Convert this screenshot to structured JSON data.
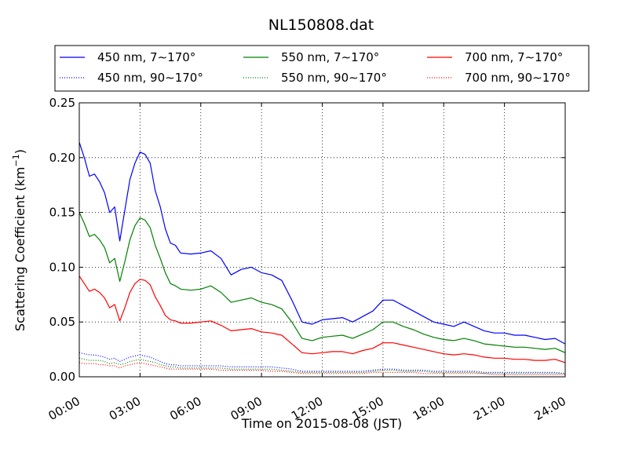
{
  "chart_data": {
    "type": "line",
    "title": "NL150808.dat",
    "xlabel": "Time on 2015-08-08 (JST)",
    "ylabel": "Scattering Coefficient (km",
    "ylabel_unit_exponent": "−1",
    "ylabel_suffix": ")",
    "x_unit": "hours",
    "xlim": [
      0,
      24
    ],
    "ylim": [
      0,
      0.25
    ],
    "grid": true,
    "grid_style": "dotted",
    "legend_position": "top",
    "legend_columns": 3,
    "x_ticks": [
      {
        "value": 0,
        "label": "00:00"
      },
      {
        "value": 3,
        "label": "03:00"
      },
      {
        "value": 6,
        "label": "06:00"
      },
      {
        "value": 9,
        "label": "09:00"
      },
      {
        "value": 12,
        "label": "12:00"
      },
      {
        "value": 15,
        "label": "15:00"
      },
      {
        "value": 18,
        "label": "18:00"
      },
      {
        "value": 21,
        "label": "21:00"
      },
      {
        "value": 24,
        "label": "24:00"
      }
    ],
    "y_ticks": [
      {
        "value": 0.0,
        "label": "0.00"
      },
      {
        "value": 0.05,
        "label": "0.05"
      },
      {
        "value": 0.1,
        "label": "0.10"
      },
      {
        "value": 0.15,
        "label": "0.15"
      },
      {
        "value": 0.2,
        "label": "0.20"
      },
      {
        "value": 0.25,
        "label": "0.25"
      }
    ],
    "x": [
      0,
      0.25,
      0.5,
      0.75,
      1,
      1.25,
      1.5,
      1.75,
      2,
      2.25,
      2.5,
      2.75,
      3,
      3.25,
      3.5,
      3.75,
      4,
      4.25,
      4.5,
      4.75,
      5,
      5.5,
      6,
      6.5,
      7,
      7.5,
      8,
      8.5,
      9,
      9.5,
      10,
      10.5,
      11,
      11.5,
      12,
      12.5,
      13,
      13.5,
      14,
      14.5,
      15,
      15.5,
      16,
      16.5,
      17,
      17.5,
      18,
      18.5,
      19,
      19.5,
      20,
      20.5,
      21,
      21.5,
      22,
      22.5,
      23,
      23.5,
      24
    ],
    "series": [
      {
        "name": "450 nm, 7∼170°",
        "color": "#0000ff",
        "style": "solid",
        "values": [
          0.214,
          0.2,
          0.183,
          0.185,
          0.178,
          0.168,
          0.15,
          0.155,
          0.124,
          0.152,
          0.18,
          0.195,
          0.205,
          0.203,
          0.195,
          0.17,
          0.155,
          0.135,
          0.122,
          0.12,
          0.113,
          0.112,
          0.113,
          0.115,
          0.108,
          0.093,
          0.098,
          0.1,
          0.095,
          0.093,
          0.088,
          0.07,
          0.05,
          0.048,
          0.052,
          0.053,
          0.054,
          0.05,
          0.055,
          0.06,
          0.07,
          0.07,
          0.065,
          0.06,
          0.055,
          0.05,
          0.048,
          0.046,
          0.05,
          0.046,
          0.042,
          0.04,
          0.04,
          0.038,
          0.038,
          0.036,
          0.034,
          0.035,
          0.03
        ]
      },
      {
        "name": "550 nm, 7∼170°",
        "color": "#008000",
        "style": "solid",
        "values": [
          0.15,
          0.14,
          0.128,
          0.13,
          0.125,
          0.118,
          0.104,
          0.108,
          0.087,
          0.105,
          0.125,
          0.138,
          0.145,
          0.143,
          0.136,
          0.12,
          0.108,
          0.095,
          0.085,
          0.083,
          0.08,
          0.079,
          0.08,
          0.083,
          0.077,
          0.068,
          0.07,
          0.072,
          0.068,
          0.066,
          0.062,
          0.05,
          0.035,
          0.033,
          0.036,
          0.037,
          0.038,
          0.035,
          0.039,
          0.043,
          0.05,
          0.05,
          0.046,
          0.043,
          0.039,
          0.036,
          0.034,
          0.033,
          0.035,
          0.033,
          0.03,
          0.029,
          0.028,
          0.027,
          0.027,
          0.026,
          0.025,
          0.026,
          0.022
        ]
      },
      {
        "name": "700 nm, 7∼170°",
        "color": "#ff0000",
        "style": "solid",
        "values": [
          0.092,
          0.085,
          0.078,
          0.08,
          0.077,
          0.072,
          0.063,
          0.066,
          0.051,
          0.063,
          0.077,
          0.085,
          0.089,
          0.088,
          0.084,
          0.073,
          0.065,
          0.056,
          0.052,
          0.051,
          0.049,
          0.049,
          0.05,
          0.051,
          0.047,
          0.042,
          0.043,
          0.044,
          0.041,
          0.04,
          0.038,
          0.03,
          0.022,
          0.021,
          0.022,
          0.023,
          0.023,
          0.021,
          0.024,
          0.026,
          0.031,
          0.031,
          0.029,
          0.027,
          0.025,
          0.023,
          0.021,
          0.02,
          0.021,
          0.02,
          0.018,
          0.017,
          0.017,
          0.016,
          0.016,
          0.015,
          0.015,
          0.016,
          0.013
        ]
      },
      {
        "name": "450 nm, 90∼170°",
        "color": "#0000ff",
        "style": "dotted",
        "values": [
          0.022,
          0.021,
          0.02,
          0.02,
          0.019,
          0.018,
          0.016,
          0.017,
          0.014,
          0.016,
          0.018,
          0.019,
          0.02,
          0.019,
          0.018,
          0.016,
          0.014,
          0.012,
          0.011,
          0.011,
          0.01,
          0.01,
          0.01,
          0.01,
          0.01,
          0.009,
          0.009,
          0.009,
          0.009,
          0.009,
          0.008,
          0.007,
          0.005,
          0.005,
          0.005,
          0.005,
          0.005,
          0.005,
          0.005,
          0.006,
          0.007,
          0.007,
          0.006,
          0.006,
          0.006,
          0.005,
          0.005,
          0.005,
          0.005,
          0.005,
          0.004,
          0.004,
          0.004,
          0.004,
          0.004,
          0.004,
          0.004,
          0.004,
          0.003
        ]
      },
      {
        "name": "550 nm, 90∼170°",
        "color": "#008000",
        "style": "dotted",
        "values": [
          0.017,
          0.016,
          0.015,
          0.015,
          0.015,
          0.014,
          0.012,
          0.013,
          0.011,
          0.012,
          0.014,
          0.015,
          0.016,
          0.015,
          0.014,
          0.013,
          0.011,
          0.01,
          0.009,
          0.009,
          0.008,
          0.008,
          0.008,
          0.008,
          0.008,
          0.007,
          0.007,
          0.007,
          0.007,
          0.007,
          0.006,
          0.005,
          0.004,
          0.004,
          0.004,
          0.004,
          0.004,
          0.004,
          0.004,
          0.005,
          0.006,
          0.006,
          0.005,
          0.005,
          0.005,
          0.004,
          0.004,
          0.004,
          0.004,
          0.004,
          0.003,
          0.003,
          0.003,
          0.003,
          0.003,
          0.003,
          0.003,
          0.003,
          0.003
        ]
      },
      {
        "name": "700 nm, 90∼170°",
        "color": "#ff0000",
        "style": "dotted",
        "values": [
          0.013,
          0.012,
          0.012,
          0.012,
          0.011,
          0.011,
          0.01,
          0.01,
          0.008,
          0.01,
          0.011,
          0.012,
          0.013,
          0.012,
          0.011,
          0.01,
          0.009,
          0.008,
          0.007,
          0.007,
          0.007,
          0.007,
          0.007,
          0.007,
          0.006,
          0.006,
          0.006,
          0.006,
          0.006,
          0.005,
          0.005,
          0.004,
          0.003,
          0.003,
          0.003,
          0.003,
          0.003,
          0.003,
          0.003,
          0.004,
          0.004,
          0.004,
          0.004,
          0.004,
          0.003,
          0.003,
          0.003,
          0.003,
          0.003,
          0.003,
          0.003,
          0.002,
          0.002,
          0.002,
          0.002,
          0.002,
          0.002,
          0.002,
          0.002
        ]
      }
    ],
    "legend_order": [
      0,
      1,
      2,
      3,
      4,
      5
    ]
  }
}
